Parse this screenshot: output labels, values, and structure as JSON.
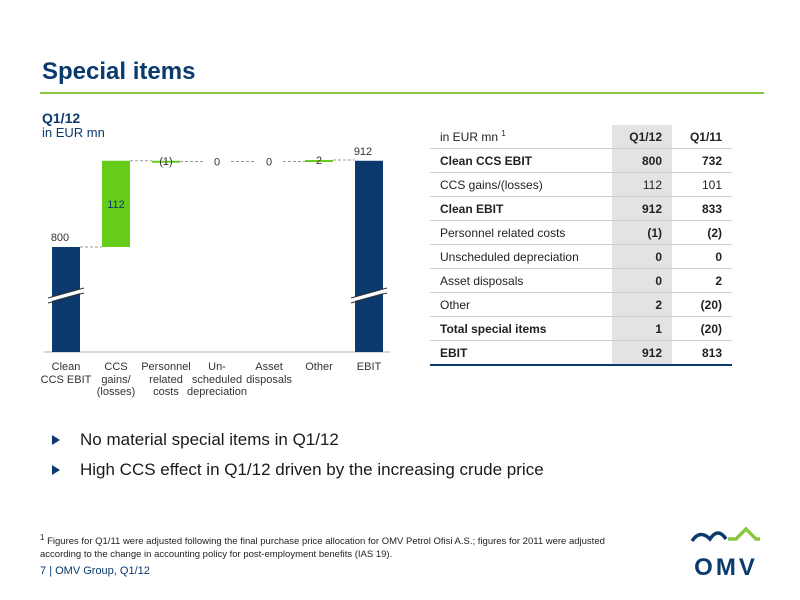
{
  "header": {
    "title": "Special items"
  },
  "chart": {
    "heading": "Q1/12",
    "subheading": "in EUR mn",
    "category_labels": [
      [
        "Clean",
        "CCS EBIT"
      ],
      [
        "CCS",
        "gains/",
        "(losses)"
      ],
      [
        "Personnel",
        "related",
        "costs"
      ],
      [
        "Un-",
        "scheduled",
        "depreciation"
      ],
      [
        "Asset",
        "disposals"
      ],
      [
        "Other"
      ],
      [
        "EBIT"
      ]
    ],
    "value_labels": [
      "800",
      "112",
      "(1)",
      "0",
      "0",
      "2",
      "912"
    ]
  },
  "chart_data": {
    "type": "bar",
    "subtype": "waterfall",
    "categories": [
      "Clean CCS EBIT",
      "CCS gains/(losses)",
      "Personnel related costs",
      "Unscheduled depreciation",
      "Asset disposals",
      "Other",
      "EBIT"
    ],
    "values": [
      800,
      112,
      -1,
      0,
      0,
      2,
      912
    ],
    "kinds": [
      "total",
      "delta",
      "delta",
      "delta",
      "delta",
      "delta",
      "total"
    ],
    "title": "Q1/12",
    "ylabel": "in EUR mn",
    "axis_break": true,
    "colors": {
      "total": "#0b3a6e",
      "delta": "#66cc1a"
    }
  },
  "table": {
    "header_label": "in EUR mn",
    "header_footnote": "1",
    "col1": "Q1/12",
    "col2": "Q1/11",
    "rows": [
      {
        "label": "Clean CCS EBIT",
        "q112": "800",
        "q111": "732",
        "bold": true
      },
      {
        "label": "CCS gains/(losses)",
        "q112": "112",
        "q111": "101",
        "bold": false
      },
      {
        "label": "Clean EBIT",
        "q112": "912",
        "q111": "833",
        "bold": true
      },
      {
        "label": "Personnel related costs",
        "q112": "(1)",
        "q111": "(2)",
        "bold": false
      },
      {
        "label": "Unscheduled depreciation",
        "q112": "0",
        "q111": "0",
        "bold": false
      },
      {
        "label": "Asset disposals",
        "q112": "0",
        "q111": "2",
        "bold": false
      },
      {
        "label": "Other",
        "q112": "2",
        "q111": "(20)",
        "bold": false
      },
      {
        "label": "Total special items",
        "q112": "1",
        "q111": "(20)",
        "bold": true
      },
      {
        "label": "EBIT",
        "q112": "912",
        "q111": "813",
        "bold": true
      }
    ]
  },
  "bullets": [
    "No material special items in Q1/12",
    "High CCS effect in Q1/12 driven by the increasing crude price"
  ],
  "footnote": {
    "marker": "1",
    "text": "Figures for Q1/11 were adjusted following the final purchase price allocation for OMV Petrol Ofisi A.S.; figures for 2011 were adjusted according to the change in accounting policy for post-employment benefits (IAS 19)."
  },
  "footer": {
    "page": "7",
    "text": "OMV Group, Q1/12"
  },
  "logo": {
    "text": "OMV",
    "brand_color": "#0b3a6e",
    "accent_color": "#8cc63f"
  }
}
